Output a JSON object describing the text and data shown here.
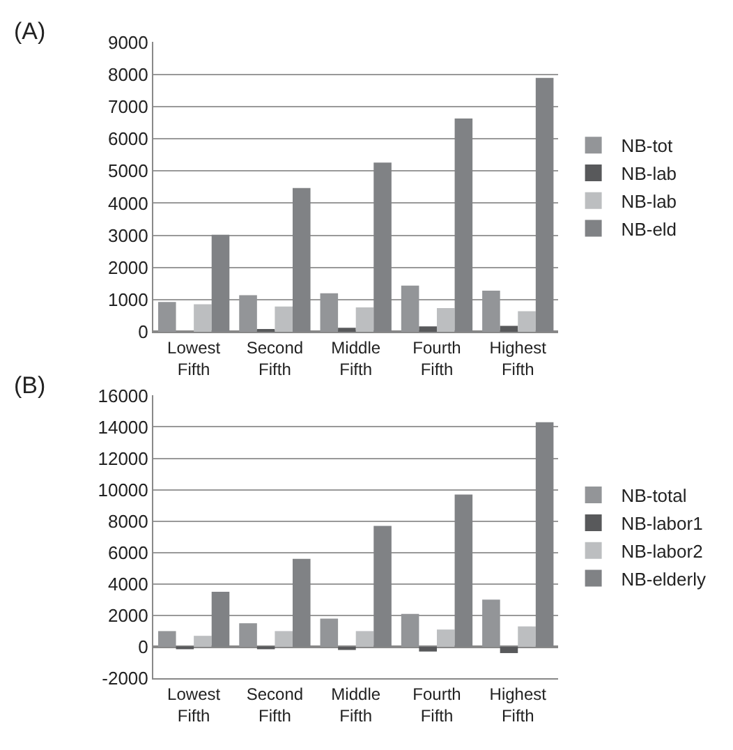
{
  "chart_data": [
    {
      "type": "bar",
      "title": "(A)",
      "categories": [
        "Lowest Fifth",
        "Second Fifth",
        "Middle Fifth",
        "Fourth Fifth",
        "Highest Fifth"
      ],
      "series": [
        {
          "name": "NB-tot",
          "color": "#939598",
          "values": [
            930,
            1140,
            1200,
            1440,
            1280
          ]
        },
        {
          "name": "NB-lab",
          "color": "#58595b",
          "values": [
            0,
            90,
            130,
            170,
            190
          ]
        },
        {
          "name": "NB-lab",
          "color": "#bcbec0",
          "values": [
            860,
            790,
            760,
            740,
            640
          ]
        },
        {
          "name": "NB-eld",
          "color": "#808285",
          "values": [
            3020,
            4470,
            5260,
            6630,
            7890
          ]
        }
      ],
      "ylim": [
        0,
        9000
      ],
      "yticks": [
        0,
        1000,
        2000,
        3000,
        4000,
        5000,
        6000,
        7000,
        8000,
        9000
      ],
      "grid": "y",
      "legend": "right"
    },
    {
      "type": "bar",
      "title": "(B)",
      "categories": [
        "Lowest Fifth",
        "Second Fifth",
        "Middle Fifth",
        "Fourth Fifth",
        "Highest Fifth"
      ],
      "series": [
        {
          "name": "NB-total",
          "color": "#939598",
          "values": [
            1000,
            1500,
            1800,
            2100,
            3000
          ]
        },
        {
          "name": "NB-labor1",
          "color": "#58595b",
          "values": [
            -100,
            -100,
            -200,
            -300,
            -400
          ]
        },
        {
          "name": "NB-labor2",
          "color": "#bcbec0",
          "values": [
            700,
            1000,
            1000,
            1100,
            1300
          ]
        },
        {
          "name": "NB-elderly",
          "color": "#808285",
          "values": [
            3500,
            5600,
            7700,
            9700,
            14300
          ]
        }
      ],
      "ylim": [
        -2000,
        16000
      ],
      "yticks": [
        -2000,
        0,
        2000,
        4000,
        6000,
        8000,
        10000,
        12000,
        14000,
        16000
      ],
      "grid": "y",
      "legend": "right"
    }
  ]
}
